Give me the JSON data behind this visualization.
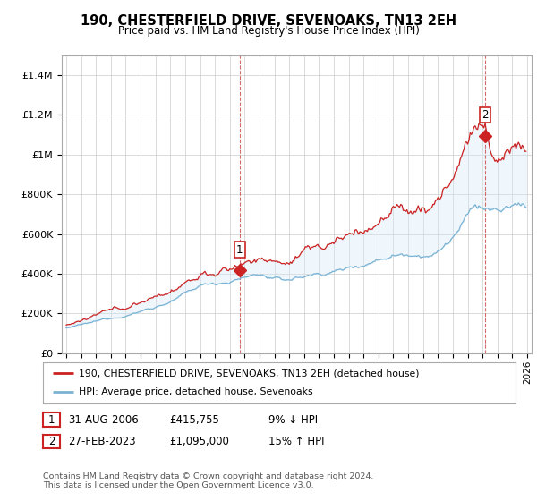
{
  "title": "190, CHESTERFIELD DRIVE, SEVENOAKS, TN13 2EH",
  "subtitle": "Price paid vs. HM Land Registry's House Price Index (HPI)",
  "ylim": [
    0,
    1500000
  ],
  "yticks": [
    0,
    200000,
    400000,
    600000,
    800000,
    1000000,
    1200000,
    1400000
  ],
  "ytick_labels": [
    "£0",
    "£200K",
    "£400K",
    "£600K",
    "£800K",
    "£1M",
    "£1.2M",
    "£1.4M"
  ],
  "x_start_year": 1995,
  "x_end_year": 2026,
  "sale1_date": 2006.667,
  "sale1_price": 415755,
  "sale2_date": 2023.167,
  "sale2_price": 1095000,
  "hpi_color": "#7ab3d4",
  "property_color": "#cc2222",
  "dashed_line_color": "#cc4444",
  "fill_color": "#d6eaf8",
  "legend_property": "190, CHESTERFIELD DRIVE, SEVENOAKS, TN13 2EH (detached house)",
  "legend_hpi": "HPI: Average price, detached house, Sevenoaks",
  "table_row1": [
    "1",
    "31-AUG-2006",
    "£415,755",
    "9% ↓ HPI"
  ],
  "table_row2": [
    "2",
    "27-FEB-2023",
    "£1,095,000",
    "15% ↑ HPI"
  ],
  "footer": "Contains HM Land Registry data © Crown copyright and database right 2024.\nThis data is licensed under the Open Government Licence v3.0.",
  "background_color": "#ffffff",
  "grid_color": "#cccccc"
}
